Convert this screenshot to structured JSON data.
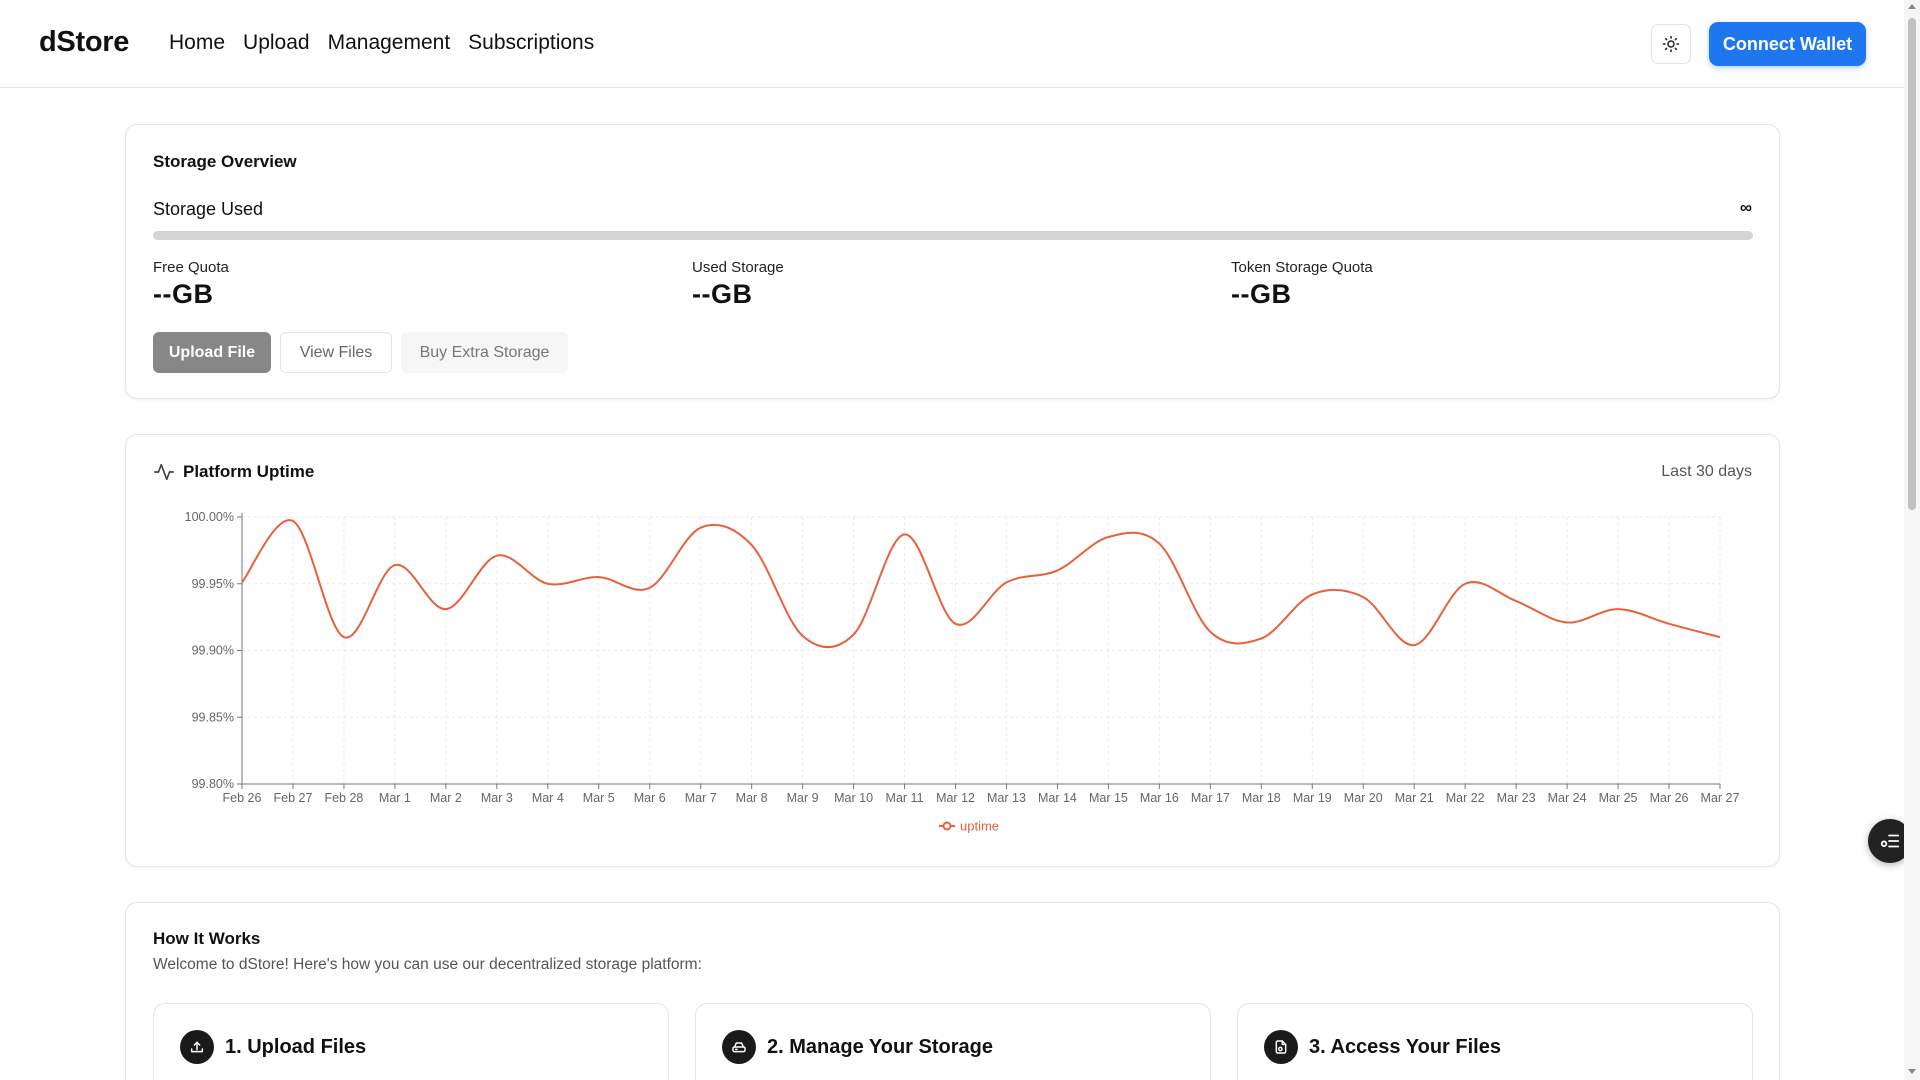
{
  "app": {
    "logo": "dStore"
  },
  "nav": [
    {
      "label": "Home"
    },
    {
      "label": "Upload"
    },
    {
      "label": "Management"
    },
    {
      "label": "Subscriptions"
    }
  ],
  "header": {
    "theme_icon": "sun-icon",
    "connect_label": "Connect Wallet"
  },
  "storage": {
    "title": "Storage Overview",
    "used_label": "Storage Used",
    "used_max": "∞",
    "progress": 0,
    "stats": [
      {
        "label": "Free Quota",
        "value": "--GB"
      },
      {
        "label": "Used Storage",
        "value": "--GB"
      },
      {
        "label": "Token Storage Quota",
        "value": "--GB"
      }
    ],
    "buttons": {
      "upload": "Upload File",
      "view": "View Files",
      "buy": "Buy Extra Storage"
    }
  },
  "uptime": {
    "title": "Platform Uptime",
    "icon": "activity-icon",
    "range": "Last 30 days"
  },
  "chart_data": {
    "type": "line",
    "x": [
      "Feb 26",
      "Feb 27",
      "Feb 28",
      "Mar 1",
      "Mar 2",
      "Mar 3",
      "Mar 4",
      "Mar 5",
      "Mar 6",
      "Mar 7",
      "Mar 8",
      "Mar 9",
      "Mar 10",
      "Mar 11",
      "Mar 12",
      "Mar 13",
      "Mar 14",
      "Mar 15",
      "Mar 16",
      "Mar 17",
      "Mar 18",
      "Mar 19",
      "Mar 20",
      "Mar 21",
      "Mar 22",
      "Mar 23",
      "Mar 24",
      "Mar 25",
      "Mar 26",
      "Mar 27"
    ],
    "series": [
      {
        "name": "uptime",
        "color": "#e8603c",
        "values": [
          99.951,
          99.997,
          99.91,
          99.964,
          99.931,
          99.971,
          99.95,
          99.955,
          99.947,
          99.992,
          99.979,
          99.911,
          99.912,
          99.987,
          99.92,
          99.951,
          99.96,
          99.985,
          99.98,
          99.914,
          99.909,
          99.942,
          99.94,
          99.904,
          99.95,
          99.937,
          99.921,
          99.931,
          99.92,
          99.91
        ]
      }
    ],
    "yticks": [
      "99.80%",
      "99.85%",
      "99.90%",
      "99.95%",
      "100.00%"
    ],
    "ytick_values": [
      99.8,
      99.85,
      99.9,
      99.95,
      100.0
    ],
    "ylim": [
      99.8,
      100.0
    ],
    "grid": true,
    "legend": "bottom-center"
  },
  "how": {
    "title": "How It Works",
    "subtitle": "Welcome to dStore! Here's how you can use our decentralized storage platform:",
    "steps": [
      {
        "title": "1. Upload Files",
        "icon": "upload-icon"
      },
      {
        "title": "2. Manage Your Storage",
        "icon": "drive-icon"
      },
      {
        "title": "3. Access Your Files",
        "icon": "file-icon"
      }
    ]
  },
  "floating": {
    "icon": "settings-list-icon"
  }
}
